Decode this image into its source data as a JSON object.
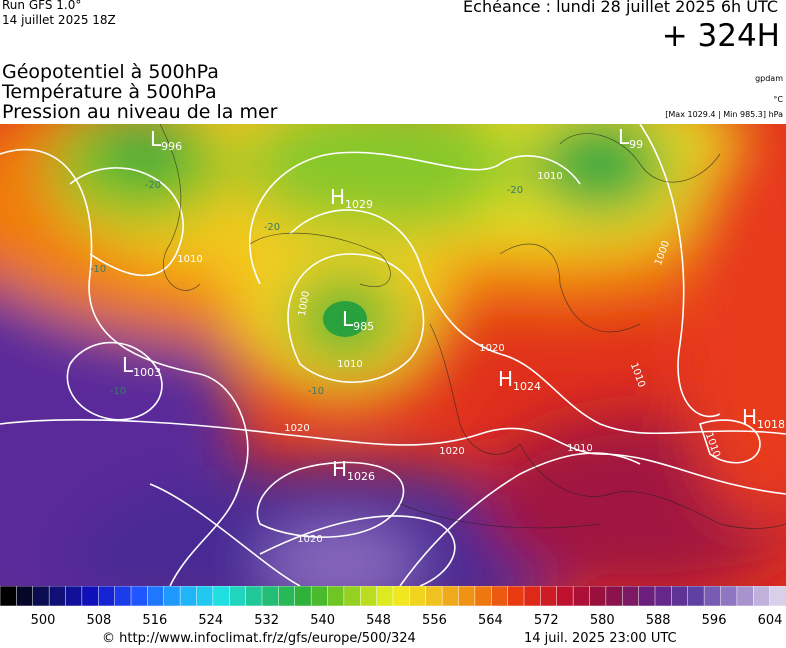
{
  "header": {
    "run": "Run GFS 1.0°",
    "run_date": "14 juillet 2025 18Z",
    "echeance": "Échéance : lundi 28 juillet 2025 6h UTC",
    "lead": "+ 324H",
    "titles": [
      "Géopotentiel à 500hPa",
      "Température à 500hPa",
      "Pression au niveau de la mer"
    ],
    "units": [
      "gpdam",
      "°C",
      "[Max 1029.4 | Min 985.3] hPa"
    ]
  },
  "map": {
    "centers": [
      {
        "letter": "L",
        "value": "996"
      },
      {
        "letter": "H",
        "value": "1029"
      },
      {
        "letter": "L",
        "value": "99"
      },
      {
        "letter": "L",
        "value": "985"
      },
      {
        "letter": "L",
        "value": "1003"
      },
      {
        "letter": "H",
        "value": "1024"
      },
      {
        "letter": "H",
        "value": "1018"
      },
      {
        "letter": "H",
        "value": "1026"
      }
    ],
    "contour_labels": [
      "1010",
      "1000",
      "1010",
      "1020",
      "1020",
      "1020",
      "1010",
      "1010",
      "1000",
      "1010",
      "1020",
      "1010",
      "-20",
      "-20",
      "-20",
      "-10",
      "-10",
      "-10"
    ]
  },
  "legend": {
    "ticks": [
      500,
      508,
      516,
      524,
      532,
      540,
      548,
      556,
      564,
      572,
      580,
      588,
      596,
      604
    ]
  },
  "footer": {
    "url": "© http://www.infoclimat.fr/z/gfs/europe/500/324",
    "date": "14 juil. 2025 23:00 UTC"
  }
}
